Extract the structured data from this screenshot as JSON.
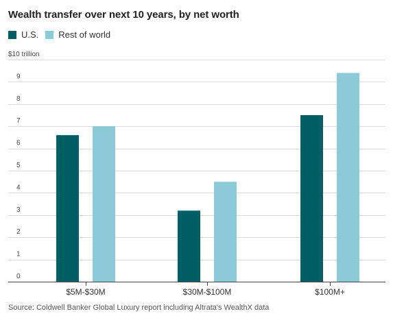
{
  "chart_data": {
    "type": "bar",
    "title": "Wealth transfer over next 10 years, by net worth",
    "ylabel": "$10 trillion",
    "categories": [
      "$5M-$30M",
      "$30M-$100M",
      "$100M+"
    ],
    "series": [
      {
        "name": "U.S.",
        "color": "#005F64",
        "values": [
          6.6,
          3.2,
          7.5
        ]
      },
      {
        "name": "Rest of world",
        "color": "#8ACBD7",
        "values": [
          7.0,
          4.5,
          9.4
        ]
      }
    ],
    "ylim": [
      0,
      10
    ],
    "yticks": [
      "0",
      "1",
      "2",
      "3",
      "4",
      "5",
      "6",
      "7",
      "8",
      "9"
    ],
    "grid": true,
    "legend_position": "top-left"
  },
  "source": "Source: Coldwell Banker Global Luxury report including Altrata's WealthX data"
}
